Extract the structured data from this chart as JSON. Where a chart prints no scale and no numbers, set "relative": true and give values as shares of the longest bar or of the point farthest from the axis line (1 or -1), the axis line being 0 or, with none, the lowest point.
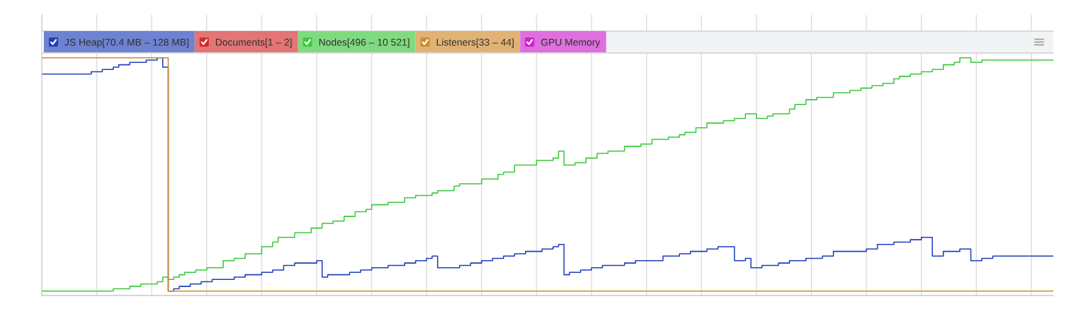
{
  "chart_data": {
    "type": "step",
    "relative": true,
    "legend": "top left",
    "grid": "x",
    "categories": [
      null,
      null,
      null,
      null,
      null,
      null,
      null,
      null,
      null,
      null,
      null,
      null,
      null,
      null,
      null,
      null,
      null,
      null,
      null,
      null,
      null,
      null,
      null,
      null,
      null,
      null,
      null,
      null,
      null,
      null,
      null,
      null,
      null,
      null,
      null,
      null,
      null,
      null,
      null,
      null,
      null,
      null,
      null,
      null,
      null,
      null,
      null,
      null,
      null,
      null,
      null,
      null,
      null,
      null,
      null,
      null,
      null,
      null,
      null,
      null,
      null,
      null,
      null,
      null,
      null,
      null,
      null,
      null,
      null,
      null,
      null,
      null,
      null,
      null,
      null,
      null,
      null,
      null,
      null,
      null,
      null,
      null,
      null,
      null,
      null,
      null,
      null,
      null,
      null,
      null,
      null,
      null,
      null,
      null,
      null,
      null,
      null,
      null,
      null,
      null,
      null,
      null,
      null,
      null,
      null,
      null,
      null,
      null,
      null,
      null,
      null,
      null,
      null,
      null,
      null,
      null,
      null,
      null,
      null,
      null,
      null,
      null,
      null,
      null,
      null,
      null,
      null,
      null,
      null,
      null,
      null,
      null,
      null,
      null,
      null,
      null,
      null,
      null,
      null,
      null,
      null,
      null,
      null,
      null,
      null,
      null,
      null,
      null,
      null,
      null,
      null,
      null,
      null,
      null,
      null,
      null,
      null,
      null,
      null,
      null,
      null,
      null,
      null,
      null,
      null,
      null,
      null,
      null,
      null,
      null,
      null,
      null,
      null,
      null,
      null,
      null,
      null,
      null,
      null,
      null,
      null,
      null,
      null,
      null,
      null
    ],
    "series": [
      {
        "name": "JS Heap[70.4 MB – 128 MB]",
        "color": "#1f3fb8",
        "values": [
          0.93,
          0.93,
          0.93,
          0.93,
          0.93,
          0.93,
          0.93,
          0.93,
          0.93,
          0.94,
          0.94,
          0.95,
          0.95,
          0.96,
          0.97,
          0.97,
          0.98,
          0.98,
          0.98,
          0.99,
          0.99,
          1,
          0.96,
          0,
          0.01,
          0.02,
          0.02,
          0.03,
          0.03,
          0.04,
          0.04,
          0.05,
          0.05,
          0.05,
          0.05,
          0.06,
          0.06,
          0.07,
          0.07,
          0.07,
          0.08,
          0.08,
          0.09,
          0.09,
          0.11,
          0.11,
          0.12,
          0.12,
          0.12,
          0.12,
          0.13,
          0.06,
          0.07,
          0.07,
          0.07,
          0.07,
          0.08,
          0.08,
          0.09,
          0.09,
          0.1,
          0.1,
          0.1,
          0.11,
          0.11,
          0.11,
          0.12,
          0.12,
          0.13,
          0.13,
          0.14,
          0.15,
          0.1,
          0.1,
          0.1,
          0.1,
          0.11,
          0.11,
          0.12,
          0.12,
          0.13,
          0.13,
          0.14,
          0.14,
          0.15,
          0.15,
          0.16,
          0.16,
          0.17,
          0.17,
          0.17,
          0.18,
          0.18,
          0.19,
          0.2,
          0.07,
          0.08,
          0.08,
          0.09,
          0.09,
          0.1,
          0.1,
          0.11,
          0.11,
          0.11,
          0.11,
          0.12,
          0.12,
          0.13,
          0.13,
          0.13,
          0.13,
          0.13,
          0.15,
          0.15,
          0.15,
          0.16,
          0.16,
          0.17,
          0.17,
          0.17,
          0.18,
          0.18,
          0.19,
          0.19,
          0.19,
          0.13,
          0.13,
          0.14,
          0.1,
          0.1,
          0.11,
          0.11,
          0.11,
          0.12,
          0.12,
          0.13,
          0.13,
          0.13,
          0.14,
          0.14,
          0.14,
          0.15,
          0.15,
          0.17,
          0.17,
          0.17,
          0.17,
          0.17,
          0.17,
          0.18,
          0.18,
          0.2,
          0.2,
          0.2,
          0.21,
          0.21,
          0.21,
          0.22,
          0.22,
          0.23,
          0.23,
          0.15,
          0.15,
          0.17,
          0.17,
          0.17,
          0.18,
          0.18,
          0.13,
          0.13,
          0.14,
          0.14,
          0.15,
          0.15,
          0.15,
          0.15,
          0.15,
          0.15,
          0.15,
          0.15,
          0.15,
          0.15,
          0.15,
          0.15
        ]
      },
      {
        "name": "Documents[1 – 2]",
        "color": "#d42a2a",
        "values": [
          null,
          null,
          null,
          null,
          null,
          null,
          null,
          null,
          null,
          null,
          null,
          null,
          null,
          null,
          null,
          null,
          null,
          null,
          null,
          null,
          null,
          null,
          null,
          null,
          null,
          null,
          null,
          null,
          null,
          null,
          null,
          null,
          null,
          null,
          null,
          null,
          null,
          null,
          null,
          null,
          null,
          null,
          null,
          null,
          null,
          null,
          null,
          null,
          null,
          null,
          null,
          null,
          null,
          null,
          null,
          null,
          null,
          null,
          null,
          null,
          null,
          null,
          null,
          null,
          null,
          null,
          null,
          null,
          null,
          null,
          null,
          null,
          null,
          null,
          null,
          null,
          null,
          null,
          null,
          null,
          null,
          null,
          null,
          null,
          null,
          null,
          null,
          null,
          null,
          null,
          null,
          null,
          null,
          null,
          null,
          null,
          null,
          null,
          null,
          null,
          null,
          null,
          null,
          null,
          null,
          null,
          null,
          null,
          null,
          null,
          null,
          null,
          null,
          null,
          null,
          null,
          null,
          null,
          null,
          null,
          null,
          null,
          null,
          null,
          null,
          null,
          null,
          null,
          null,
          null,
          null,
          null,
          null,
          null,
          null,
          null,
          null,
          null,
          null,
          null,
          null,
          null,
          null,
          null,
          null,
          null,
          null,
          null,
          null,
          null,
          null,
          null,
          null,
          null,
          null,
          null,
          null,
          null,
          null,
          null,
          null,
          null,
          null,
          null,
          null,
          null,
          null,
          null,
          null,
          null,
          null,
          null,
          null,
          null,
          null,
          null,
          null,
          null,
          null,
          null,
          null,
          null,
          null,
          null,
          null
        ]
      },
      {
        "name": "Nodes[496 – 10 521]",
        "color": "#3cc83c",
        "values": [
          0,
          0,
          0,
          0,
          0,
          0,
          0,
          0,
          0,
          0,
          0,
          0,
          0,
          0.01,
          0.01,
          0.01,
          0.02,
          0.02,
          0.03,
          0.03,
          0.03,
          0.04,
          0.06,
          0.05,
          0.06,
          0.07,
          0.08,
          0.08,
          0.09,
          0.09,
          0.1,
          0.1,
          0.1,
          0.13,
          0.13,
          0.14,
          0.14,
          0.16,
          0.16,
          0.16,
          0.19,
          0.19,
          0.21,
          0.23,
          0.23,
          0.23,
          0.25,
          0.25,
          0.25,
          0.27,
          0.27,
          0.29,
          0.29,
          0.3,
          0.3,
          0.32,
          0.32,
          0.34,
          0.34,
          0.35,
          0.37,
          0.37,
          0.37,
          0.38,
          0.38,
          0.38,
          0.4,
          0.4,
          0.41,
          0.41,
          0.41,
          0.42,
          0.43,
          0.43,
          0.43,
          0.45,
          0.46,
          0.46,
          0.46,
          0.46,
          0.48,
          0.48,
          0.48,
          0.5,
          0.51,
          0.51,
          0.54,
          0.54,
          0.54,
          0.54,
          0.56,
          0.56,
          0.56,
          0.57,
          0.6,
          0.54,
          0.54,
          0.55,
          0.55,
          0.57,
          0.57,
          0.59,
          0.59,
          0.6,
          0.6,
          0.6,
          0.62,
          0.62,
          0.62,
          0.63,
          0.63,
          0.65,
          0.65,
          0.65,
          0.66,
          0.66,
          0.67,
          0.68,
          0.68,
          0.7,
          0.7,
          0.72,
          0.72,
          0.72,
          0.73,
          0.73,
          0.74,
          0.74,
          0.76,
          0.76,
          0.74,
          0.74,
          0.75,
          0.76,
          0.76,
          0.76,
          0.78,
          0.8,
          0.8,
          0.82,
          0.82,
          0.83,
          0.83,
          0.83,
          0.85,
          0.85,
          0.85,
          0.86,
          0.86,
          0.87,
          0.87,
          0.88,
          0.88,
          0.89,
          0.89,
          0.91,
          0.92,
          0.92,
          0.93,
          0.93,
          0.94,
          0.94,
          0.95,
          0.95,
          0.97,
          0.97,
          0.98,
          1,
          1,
          0.98,
          0.98,
          0.99,
          0.99,
          0.99,
          0.99,
          0.99,
          0.99,
          0.99,
          0.99,
          0.99,
          0.99,
          0.99,
          0.99,
          0.99,
          0.99
        ]
      },
      {
        "name": "Listeners[33 – 44]",
        "color": "#d08a2a",
        "values": [
          1,
          1,
          1,
          1,
          1,
          1,
          1,
          1,
          1,
          1,
          1,
          1,
          1,
          1,
          1,
          1,
          1,
          1,
          1,
          1,
          1,
          1,
          1,
          0,
          0,
          0,
          0,
          0,
          0,
          0,
          0,
          0,
          0,
          0,
          0,
          0,
          0,
          0,
          0,
          0,
          0,
          0,
          0,
          0,
          0,
          0,
          0,
          0,
          0,
          0,
          0,
          0,
          0,
          0,
          0,
          0,
          0,
          0,
          0,
          0,
          0,
          0,
          0,
          0,
          0,
          0,
          0,
          0,
          0,
          0,
          0,
          0,
          0,
          0,
          0,
          0,
          0,
          0,
          0,
          0,
          0,
          0,
          0,
          0,
          0,
          0,
          0,
          0,
          0,
          0,
          0,
          0,
          0,
          0,
          0,
          0,
          0,
          0,
          0,
          0,
          0,
          0,
          0,
          0,
          0,
          0,
          0,
          0,
          0,
          0,
          0,
          0,
          0,
          0,
          0,
          0,
          0,
          0,
          0,
          0,
          0,
          0,
          0,
          0,
          0,
          0,
          0,
          0,
          0,
          0,
          0,
          0,
          0,
          0,
          0,
          0,
          0,
          0,
          0,
          0,
          0,
          0,
          0,
          0,
          0,
          0,
          0,
          0,
          0,
          0,
          0,
          0,
          0,
          0,
          0,
          0,
          0,
          0,
          0,
          0,
          0,
          0,
          0,
          0,
          0,
          0,
          0,
          0,
          0,
          0,
          0,
          0,
          0,
          0,
          0,
          0,
          0,
          0,
          0,
          0,
          0,
          0,
          0,
          0,
          0
        ]
      },
      {
        "name": "GPU Memory",
        "color": "#cc22cc",
        "values": [
          null,
          null,
          null,
          null,
          null,
          null,
          null,
          null,
          null,
          null,
          null,
          null,
          null,
          null,
          null,
          null,
          null,
          null,
          null,
          null,
          null,
          null,
          null,
          null,
          null,
          null,
          null,
          null,
          null,
          null,
          null,
          null,
          null,
          null,
          null,
          null,
          null,
          null,
          null,
          null,
          null,
          null,
          null,
          null,
          null,
          null,
          null,
          null,
          null,
          null,
          null,
          null,
          null,
          null,
          null,
          null,
          null,
          null,
          null,
          null,
          null,
          null,
          null,
          null,
          null,
          null,
          null,
          null,
          null,
          null,
          null,
          null,
          null,
          null,
          null,
          null,
          null,
          null,
          null,
          null,
          null,
          null,
          null,
          null,
          null,
          null,
          null,
          null,
          null,
          null,
          null,
          null,
          null,
          null,
          null,
          null,
          null,
          null,
          null,
          null,
          null,
          null,
          null,
          null,
          null,
          null,
          null,
          null,
          null,
          null,
          null,
          null,
          null,
          null,
          null,
          null,
          null,
          null,
          null,
          null,
          null,
          null,
          null,
          null,
          null,
          null,
          null,
          null,
          null,
          null,
          null,
          null,
          null,
          null,
          null,
          null,
          null,
          null,
          null,
          null,
          null,
          null,
          null,
          null,
          null,
          null,
          null,
          null,
          null,
          null,
          null,
          null,
          null,
          null,
          null,
          null,
          null,
          null,
          null,
          null,
          null,
          null,
          null,
          null,
          null,
          null,
          null,
          null,
          null,
          null,
          null,
          null,
          null,
          null,
          null,
          null,
          null,
          null,
          null,
          null,
          null,
          null,
          null,
          null,
          null
        ]
      }
    ]
  }
}
